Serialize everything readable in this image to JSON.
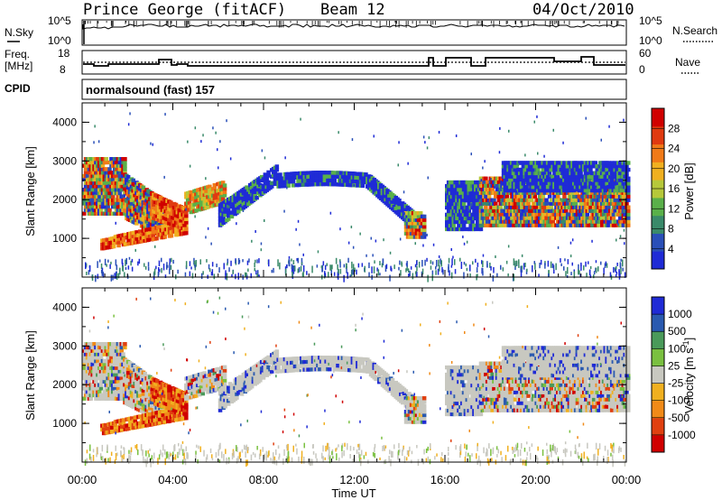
{
  "header": {
    "station": "Prince George (fitACF)",
    "beam": "Beam 12",
    "date": "04/Oct/2010"
  },
  "panels": {
    "nsky": {
      "label": "N.Sky",
      "tick_top": "10^5",
      "tick_bottom": "10^0",
      "right_label": "N.Search",
      "right_tick_top": "10^5",
      "right_tick_bottom": "10^0"
    },
    "freq": {
      "label_line1": "Freq.",
      "label_line2": "[MHz]",
      "tick_top": "18",
      "tick_bottom": "8",
      "right_label": "Nave",
      "right_tick_top": "60",
      "right_tick_bottom": "0"
    },
    "cpid": {
      "label": "CPID",
      "text": "normalsound (fast) 157"
    }
  },
  "colors": {
    "background_scatter_grey": "#c8c8c0",
    "power_scale": [
      "#1f2bd6",
      "#2a4fb8",
      "#3a8a6a",
      "#5ab04a",
      "#b6c83a",
      "#f0b020",
      "#f07a18",
      "#e03a10",
      "#d00000"
    ],
    "velocity_scale": [
      "#d00000",
      "#e04010",
      "#f08a18",
      "#f0b020",
      "#c8c8c0",
      "#7ac040",
      "#4a9a5a",
      "#2a5ab0",
      "#1f2bd6"
    ]
  },
  "chart_data": [
    {
      "type": "heatmap",
      "title": "Power",
      "xlabel": "Time UT",
      "ylabel": "Slant Range [km]",
      "x_ticks": [
        "00:00",
        "04:00",
        "08:00",
        "12:00",
        "16:00",
        "20:00",
        "00:00"
      ],
      "y_ticks": [
        "1000",
        "2000",
        "3000",
        "4000"
      ],
      "ylim": [
        0,
        4500
      ],
      "colorbar": {
        "label": "Power [dB]",
        "ticks": [
          "4",
          "8",
          "12",
          "16",
          "20",
          "24",
          "28"
        ],
        "range": [
          0,
          30
        ]
      }
    },
    {
      "type": "heatmap",
      "title": "Velocity",
      "xlabel": "Time UT",
      "ylabel": "Slant Range [km]",
      "x_ticks": [
        "00:00",
        "04:00",
        "08:00",
        "12:00",
        "16:00",
        "20:00",
        "00:00"
      ],
      "y_ticks": [
        "1000",
        "2000",
        "3000",
        "4000"
      ],
      "ylim": [
        0,
        4500
      ],
      "colorbar": {
        "label": "Velocity [m s^-1]",
        "ticks": [
          "1000",
          "500",
          "100",
          "25",
          "-25",
          "-100",
          "-500",
          "-1000"
        ]
      }
    }
  ],
  "axis": {
    "xlabel": "Time UT"
  }
}
